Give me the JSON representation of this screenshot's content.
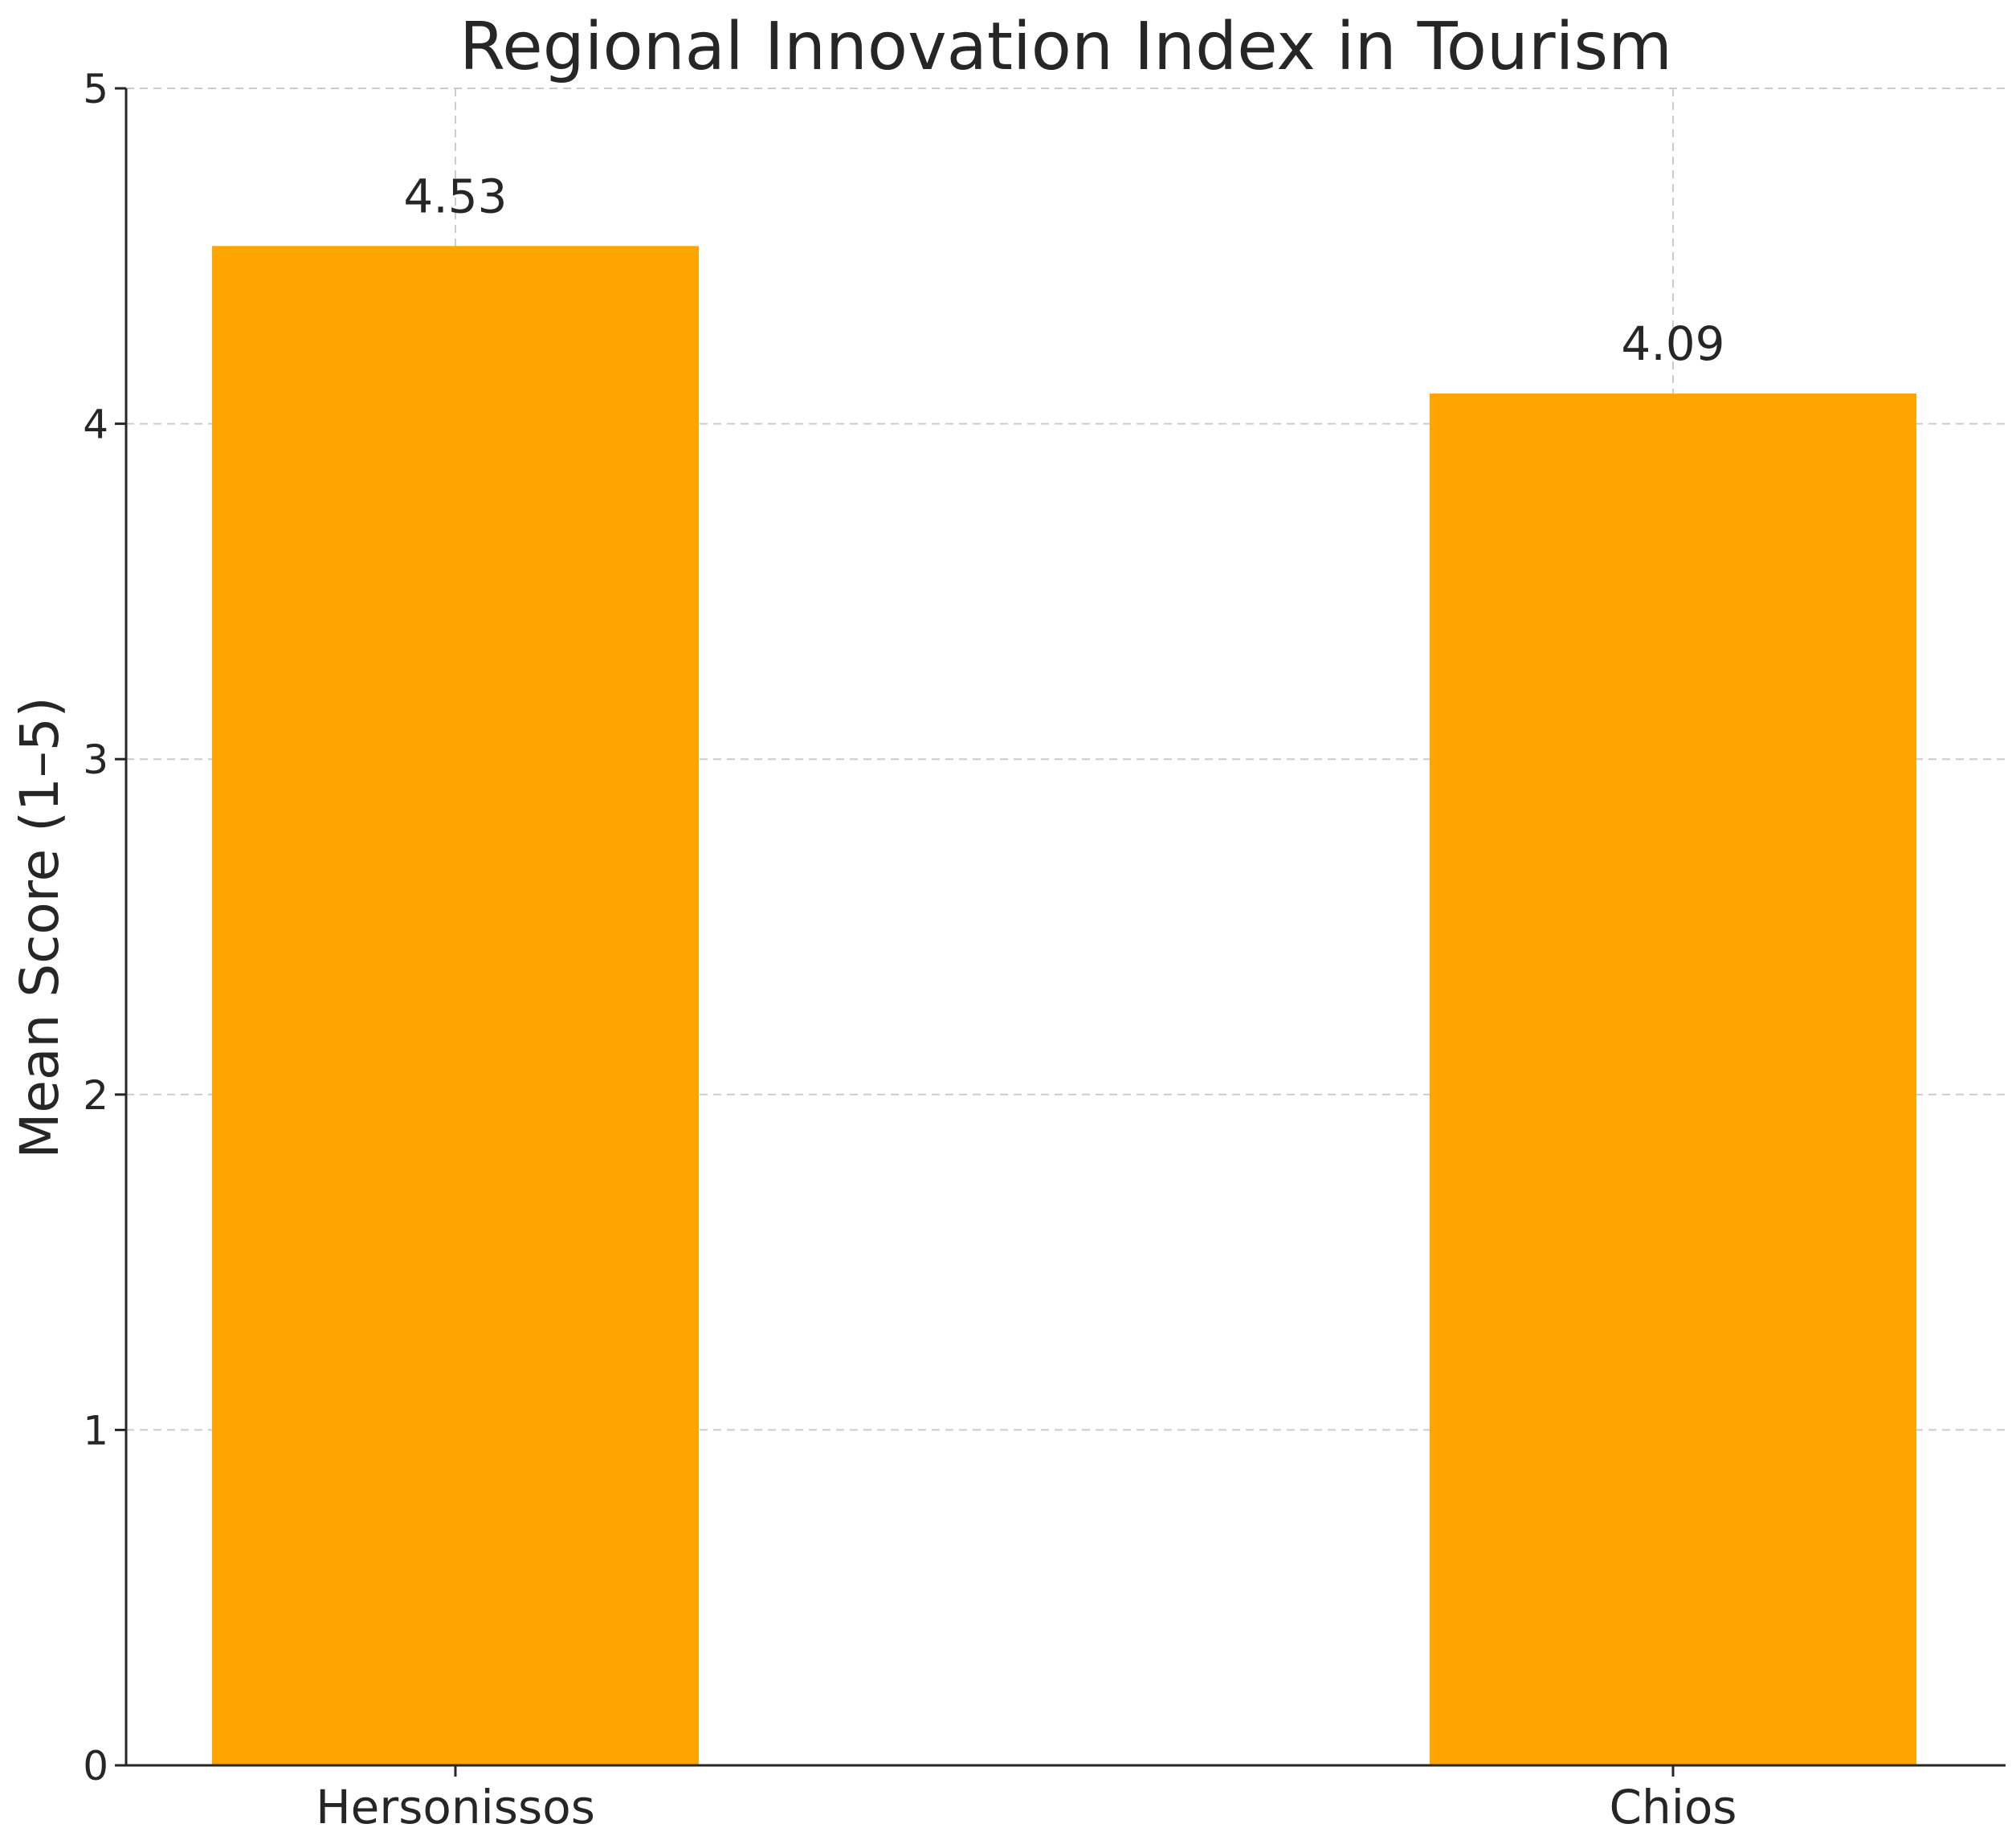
{
  "chart_data": {
    "type": "bar",
    "title": "Regional Innovation Index in Tourism",
    "xlabel": "",
    "ylabel": "Mean Score (1–5)",
    "categories": [
      "Hersonissos",
      "Chios"
    ],
    "values": [
      4.53,
      4.09
    ],
    "data_labels": [
      "4.53",
      "4.09"
    ],
    "ylim": [
      0,
      5
    ],
    "yticks": [
      0,
      1,
      2,
      3,
      4,
      5
    ],
    "grid": true,
    "bar_color": "#FFA500"
  }
}
